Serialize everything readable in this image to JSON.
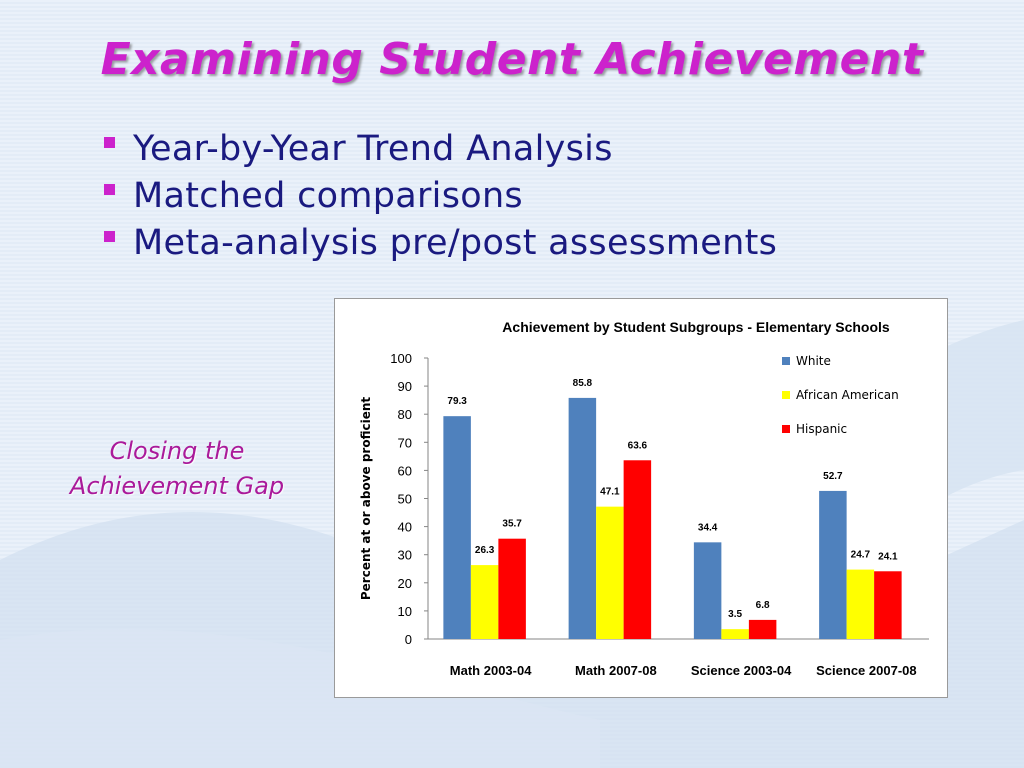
{
  "slide": {
    "title": "Examining Student Achievement",
    "bullets": [
      "Year-by-Year Trend Analysis",
      "Matched comparisons",
      "Meta-analysis pre/post assessments"
    ],
    "side_note": [
      "Closing the",
      "Achievement Gap"
    ],
    "colors": {
      "title": "#cc22cc",
      "bullet_text": "#1a1a80",
      "bullet_marker": "#cc22cc",
      "side_note": "#aa1a9a"
    }
  },
  "chart_data": {
    "type": "bar",
    "title": "Achievement by Student Subgroups - Elementary Schools",
    "xlabel": "",
    "ylabel": "Percent at or above proficient",
    "ylim": [
      0,
      100
    ],
    "yticks": [
      0,
      10,
      20,
      30,
      40,
      50,
      60,
      70,
      80,
      90,
      100
    ],
    "grid": false,
    "legend_position": "top-right",
    "categories": [
      "Math 2003-04",
      "Math 2007-08",
      "Science 2003-04",
      "Science 2007-08"
    ],
    "series": [
      {
        "name": "White",
        "color": "#4f81bd",
        "values": [
          79.3,
          85.8,
          34.4,
          52.7
        ],
        "labels": [
          "79.3",
          "85.8",
          "34.4",
          "52.7"
        ]
      },
      {
        "name": "African American",
        "color": "#ffff00",
        "values": [
          26.3,
          47.1,
          3.5,
          24.7
        ],
        "labels": [
          "26.3",
          "47.1",
          "3.5",
          "24.7"
        ]
      },
      {
        "name": "Hispanic",
        "color": "#ff0000",
        "values": [
          35.7,
          63.6,
          6.8,
          24.1
        ],
        "labels": [
          "35.7",
          "63.6",
          "6.8",
          "24.1"
        ]
      }
    ]
  }
}
